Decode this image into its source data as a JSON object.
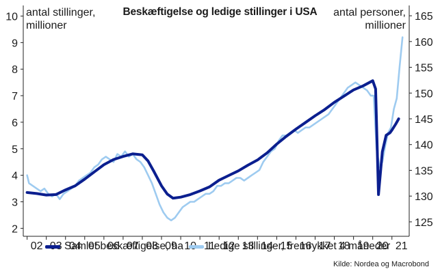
{
  "chart_data": {
    "type": "line",
    "title": "Beskæftigelse og ledige stillinger i USA",
    "left_axis_label": [
      "antal stillinger,",
      "millioner"
    ],
    "right_axis_label": [
      "antal personer,",
      "millioner"
    ],
    "left_ylim": [
      1.7,
      10.4
    ],
    "right_ylim": [
      122.2,
      167.0
    ],
    "left_ticks": [
      "2",
      "3",
      "4",
      "5",
      "6",
      "7",
      "8",
      "9",
      "10"
    ],
    "right_ticks": [
      "125",
      "130",
      "135",
      "140",
      "145",
      "150",
      "155",
      "160",
      "165"
    ],
    "x_ticks": [
      "02",
      "03",
      "04",
      "05",
      "06",
      "07",
      "08",
      "09",
      "10",
      "11",
      "12",
      "13",
      "14",
      "15",
      "16",
      "17",
      "18",
      "19",
      "20",
      "21"
    ],
    "xlim": [
      2001.8,
      2021.9
    ],
    "grid": false,
    "legend_position": "bottom",
    "series": [
      {
        "name": "Samlet beskæftigelse, ha",
        "axis": "right",
        "color": "#0b1f8f",
        "x": [
          2002.0,
          2002.5,
          2003.0,
          2003.5,
          2004.0,
          2004.5,
          2005.0,
          2005.5,
          2006.0,
          2006.5,
          2007.0,
          2007.5,
          2008.0,
          2008.3,
          2008.6,
          2009.0,
          2009.3,
          2009.6,
          2010.0,
          2010.5,
          2011.0,
          2011.5,
          2012.0,
          2012.5,
          2013.0,
          2013.5,
          2014.0,
          2014.5,
          2015.0,
          2015.5,
          2016.0,
          2016.5,
          2017.0,
          2017.5,
          2018.0,
          2018.5,
          2019.0,
          2019.5,
          2020.0,
          2020.15,
          2020.3,
          2020.5,
          2020.7,
          2020.9,
          2021.0,
          2021.2,
          2021.35
        ],
        "values": [
          130.7,
          130.5,
          130.2,
          130.3,
          131.2,
          132.0,
          133.3,
          134.7,
          136.1,
          137.1,
          137.7,
          138.2,
          138.0,
          136.8,
          134.8,
          132.0,
          130.4,
          129.6,
          129.8,
          130.3,
          131.0,
          131.8,
          133.1,
          134.0,
          134.9,
          136.0,
          137.0,
          138.4,
          140.1,
          141.6,
          143.0,
          144.3,
          145.6,
          146.8,
          148.2,
          149.4,
          150.6,
          151.4,
          152.4,
          150.8,
          130.3,
          138.6,
          141.8,
          142.3,
          142.8,
          144.0,
          145.0
        ]
      },
      {
        "name": "Ledige stillinger, fremrykket 4 måneder",
        "axis": "left",
        "color": "#9ecbf0",
        "x": [
          2002.0,
          2002.1,
          2002.3,
          2002.5,
          2002.7,
          2002.9,
          2003.1,
          2003.3,
          2003.5,
          2003.7,
          2003.9,
          2004.1,
          2004.3,
          2004.5,
          2004.7,
          2004.9,
          2005.1,
          2005.3,
          2005.5,
          2005.7,
          2005.9,
          2006.1,
          2006.3,
          2006.5,
          2006.7,
          2006.9,
          2007.1,
          2007.3,
          2007.5,
          2007.7,
          2007.9,
          2008.1,
          2008.3,
          2008.5,
          2008.7,
          2008.9,
          2009.1,
          2009.3,
          2009.5,
          2009.7,
          2009.9,
          2010.1,
          2010.3,
          2010.5,
          2010.7,
          2010.9,
          2011.1,
          2011.3,
          2011.5,
          2011.7,
          2011.9,
          2012.1,
          2012.3,
          2012.5,
          2012.7,
          2012.9,
          2013.1,
          2013.3,
          2013.5,
          2013.7,
          2013.9,
          2014.1,
          2014.3,
          2014.5,
          2014.7,
          2014.9,
          2015.1,
          2015.3,
          2015.5,
          2015.7,
          2015.9,
          2016.1,
          2016.3,
          2016.5,
          2016.7,
          2016.9,
          2017.1,
          2017.3,
          2017.5,
          2017.7,
          2017.9,
          2018.1,
          2018.3,
          2018.5,
          2018.7,
          2018.9,
          2019.1,
          2019.3,
          2019.5,
          2019.7,
          2019.9,
          2020.05,
          2020.2,
          2020.35,
          2020.5,
          2020.65,
          2020.8,
          2020.95,
          2021.1,
          2021.25,
          2021.4,
          2021.55
        ],
        "values": [
          4.0,
          3.7,
          3.6,
          3.5,
          3.4,
          3.5,
          3.3,
          3.2,
          3.3,
          3.1,
          3.3,
          3.4,
          3.5,
          3.6,
          3.8,
          3.9,
          4.0,
          4.1,
          4.3,
          4.4,
          4.6,
          4.7,
          4.6,
          4.5,
          4.8,
          4.7,
          4.9,
          4.7,
          4.8,
          4.6,
          4.5,
          4.3,
          4.0,
          3.7,
          3.3,
          2.9,
          2.6,
          2.4,
          2.3,
          2.4,
          2.6,
          2.8,
          2.9,
          3.0,
          3.0,
          3.1,
          3.2,
          3.3,
          3.3,
          3.4,
          3.6,
          3.6,
          3.7,
          3.7,
          3.8,
          3.9,
          3.9,
          3.8,
          3.9,
          4.0,
          4.1,
          4.2,
          4.5,
          4.7,
          4.9,
          5.0,
          5.3,
          5.5,
          5.5,
          5.6,
          5.7,
          5.6,
          5.7,
          5.8,
          5.8,
          5.9,
          6.0,
          6.1,
          6.2,
          6.3,
          6.5,
          6.7,
          6.9,
          7.1,
          7.3,
          7.4,
          7.5,
          7.4,
          7.3,
          7.2,
          7.0,
          7.0,
          5.0,
          4.3,
          4.5,
          5.1,
          5.6,
          5.8,
          6.5,
          6.9,
          8.1,
          9.2
        ]
      }
    ]
  },
  "source": "Kilde: Nordea og Macrobond"
}
